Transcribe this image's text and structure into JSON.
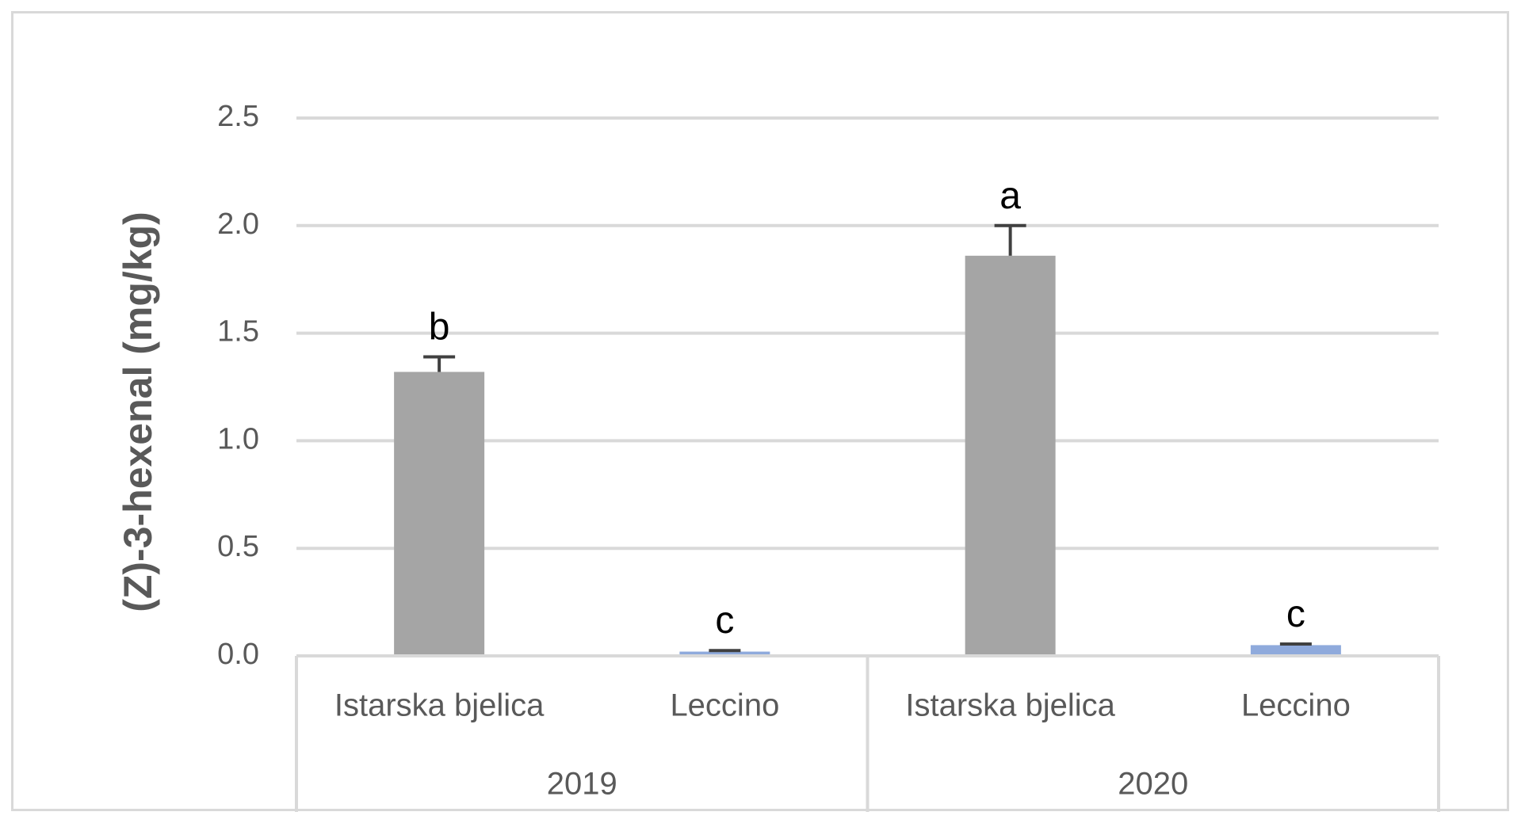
{
  "chart_data": {
    "type": "bar",
    "ylabel": "(Z)-3-hexenal (mg/kg)",
    "ylim": [
      0,
      2.5
    ],
    "yticks": [
      "0.0",
      "0.5",
      "1.0",
      "1.5",
      "2.0",
      "2.5"
    ],
    "grid": true,
    "groups": [
      {
        "label": "2019",
        "bars": [
          {
            "category": "Istarska bjelica",
            "value": 1.32,
            "error": 0.07,
            "letter": "b",
            "color": "#a5a5a5"
          },
          {
            "category": "Leccino",
            "value": 0.02,
            "error": 0.005,
            "letter": "c",
            "color": "#8faadc"
          }
        ]
      },
      {
        "label": "2020",
        "bars": [
          {
            "category": "Istarska bjelica",
            "value": 1.86,
            "error": 0.14,
            "letter": "a",
            "color": "#a5a5a5"
          },
          {
            "category": "Leccino",
            "value": 0.05,
            "error": 0.005,
            "letter": "c",
            "color": "#8faadc"
          }
        ]
      }
    ],
    "colors": {
      "grid": "#d9d9d9",
      "axis_text": "#595959",
      "error_bar": "#404040",
      "letters": "#000000"
    }
  }
}
